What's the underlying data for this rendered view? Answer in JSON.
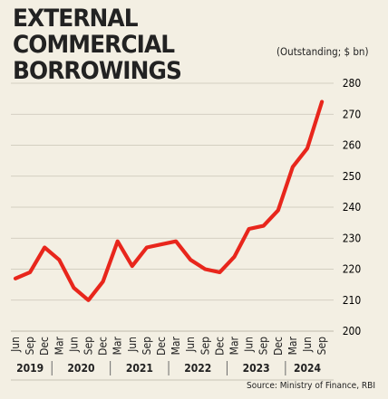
{
  "title": "EXTERNAL COMMERCIAL BORROWINGS",
  "title_line1": "EXTERNAL COMMERCIAL",
  "title_line2": "BORROWINGS",
  "subtitle": "(Outstanding; $ bn)",
  "source": "Source: Ministry of Finance, RBI",
  "colors": {
    "background": "#f3efe3",
    "line": "#e8261c",
    "grid": "#c9c4b6"
  },
  "chart_data": {
    "type": "line",
    "title": "EXTERNAL COMMERCIAL BORROWINGS",
    "ylabel": "(Outstanding; $ bn)",
    "xlabel": "",
    "ylim": [
      200,
      280
    ],
    "yticks": [
      200,
      210,
      220,
      230,
      240,
      250,
      260,
      270,
      280
    ],
    "grid": true,
    "y_axis_position": "right",
    "categories": [
      "Jun",
      "Sep",
      "Dec",
      "Mar",
      "Jun",
      "Sep",
      "Dec",
      "Mar",
      "Jun",
      "Sep",
      "Dec",
      "Mar",
      "Jun",
      "Sep",
      "Dec",
      "Mar",
      "Jun",
      "Sep",
      "Dec",
      "Mar",
      "Jun",
      "Sep"
    ],
    "years": [
      {
        "label": "2019",
        "start": 0,
        "end": 2
      },
      {
        "label": "2020",
        "start": 3,
        "end": 6
      },
      {
        "label": "2021",
        "start": 7,
        "end": 10
      },
      {
        "label": "2022",
        "start": 11,
        "end": 14
      },
      {
        "label": "2023",
        "start": 15,
        "end": 18
      },
      {
        "label": "2024",
        "start": 19,
        "end": 21
      }
    ],
    "series": [
      {
        "values": [
          217,
          219,
          227,
          223,
          214,
          210,
          216,
          229,
          221,
          227,
          228,
          229,
          223,
          220,
          219,
          224,
          233,
          234,
          239,
          253,
          259,
          274
        ]
      }
    ]
  }
}
